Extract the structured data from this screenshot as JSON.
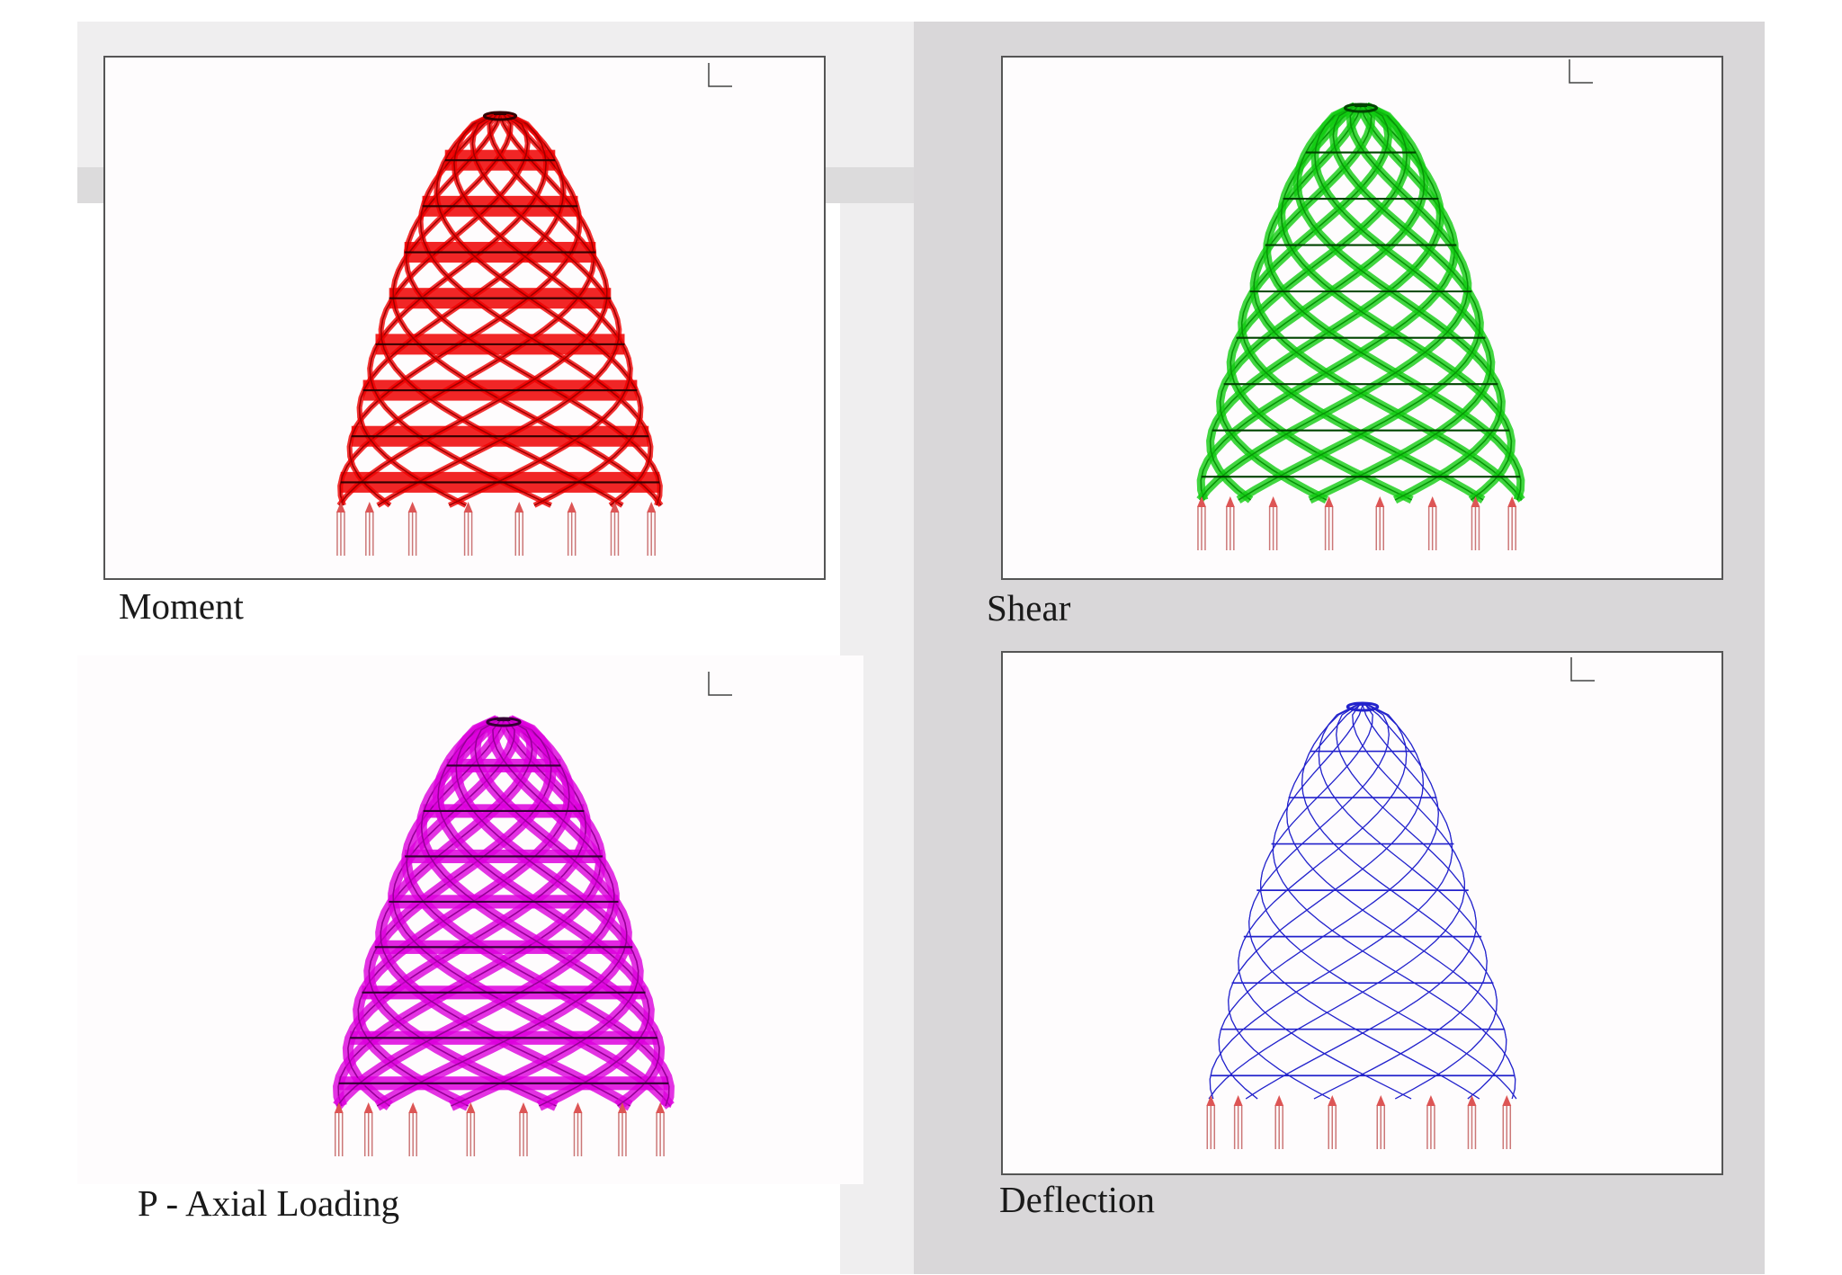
{
  "panels": [
    {
      "label": "Moment"
    },
    {
      "label": "Shear"
    },
    {
      "label": "P - Axial Loading"
    },
    {
      "label": "Deflection"
    }
  ]
}
